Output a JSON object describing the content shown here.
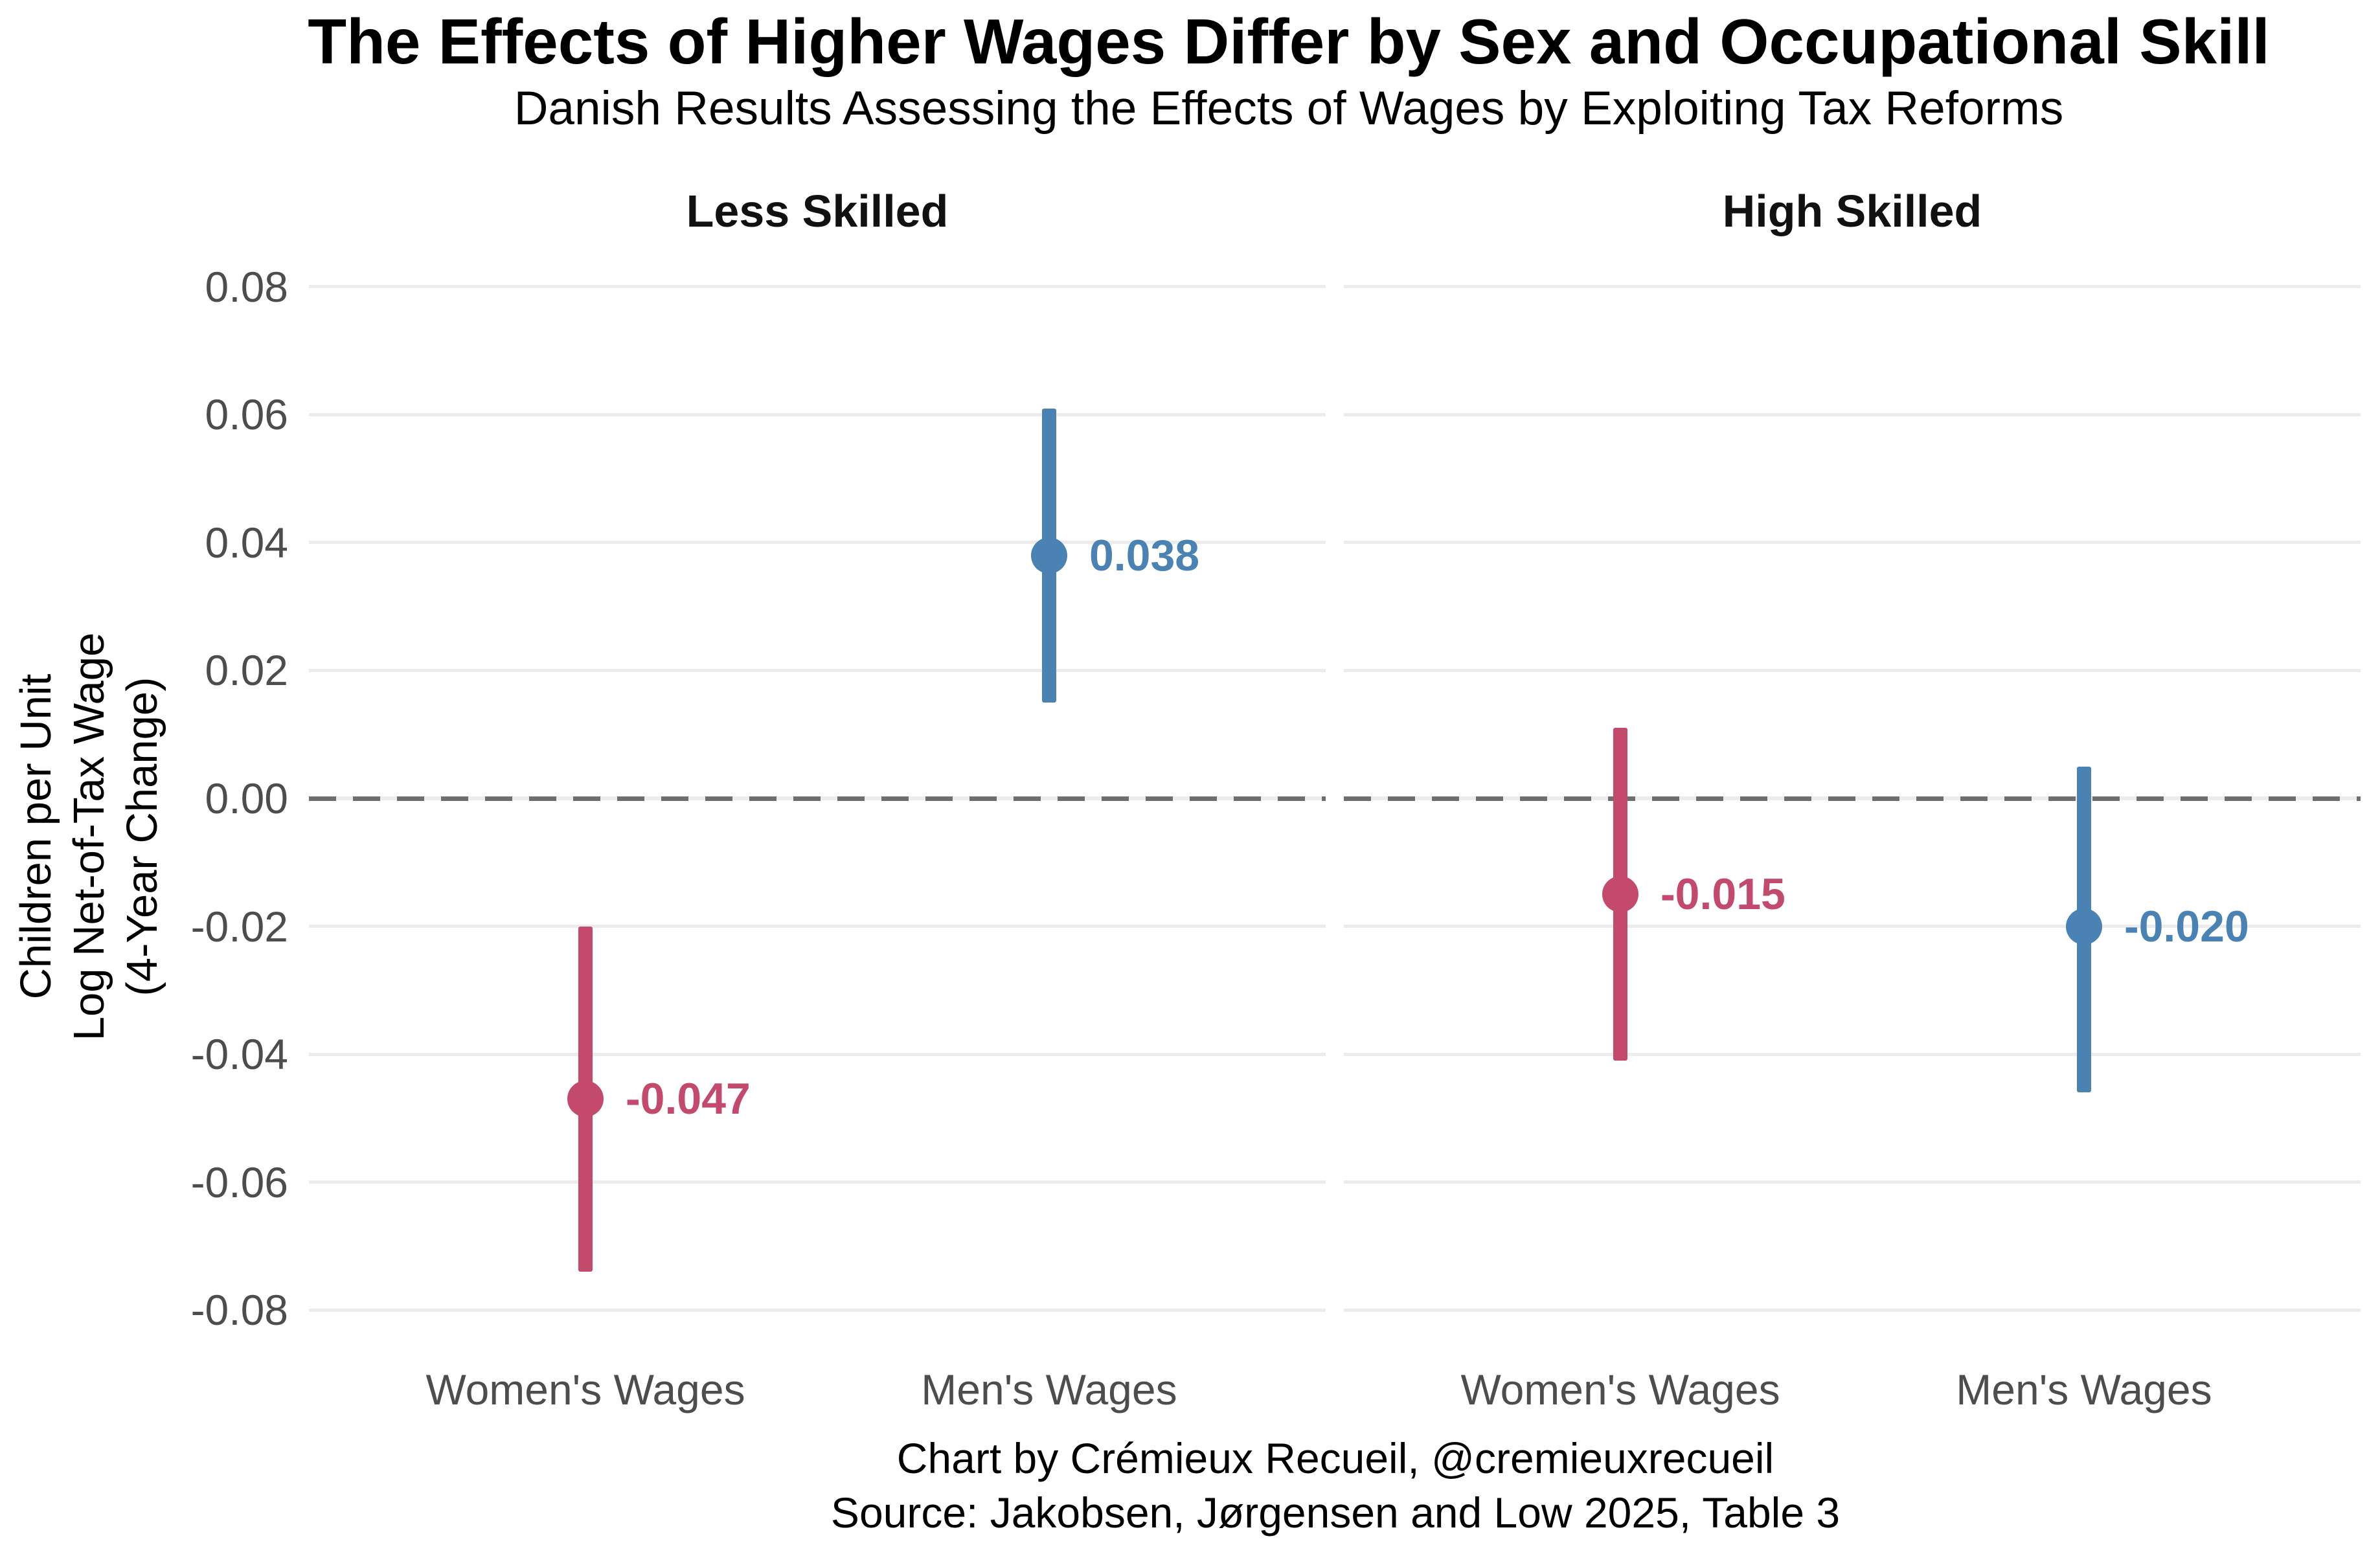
{
  "title": "The Effects of Higher Wages Differ by Sex and Occupational Skill",
  "subtitle": "Danish Results Assessing the Effects of Wages by Exploiting Tax Reforms",
  "caption": {
    "line1": "Chart by Crémieux Recueil, @cremieuxrecueil",
    "line2": "Source: Jakobsen, Jørgensen and Low 2025, Table 3"
  },
  "y_axis": {
    "label_lines": [
      "Children per Unit",
      "Log Net-of-Tax Wage",
      "(4-Year Change)"
    ]
  },
  "colors": {
    "women": "#C34A6D",
    "men": "#4A82B4",
    "grid": "#ECECEC",
    "zero_dash": "#6E6E6E",
    "axis_text": "#4D4D4D",
    "text": "#000000",
    "background": "#FFFFFF"
  },
  "chart_data": {
    "type": "scatter",
    "subtype": "pointrange-errorbar",
    "title": "The Effects of Higher Wages Differ by Sex and Occupational Skill",
    "subtitle": "Danish Results Assessing the Effects of Wages by Exploiting Tax Reforms",
    "xlabel": "",
    "ylabel": "Children per Unit Log Net-of-Tax Wage (4-Year Change)",
    "ylim": [
      -0.0817,
      0.0813
    ],
    "yticks": [
      0.08,
      0.06,
      0.04,
      0.02,
      0,
      -0.02,
      -0.04,
      -0.06,
      -0.08
    ],
    "zero_reference_line": 0,
    "grid": true,
    "legend_position": "none",
    "facets": [
      {
        "label": "Less Skilled",
        "points": [
          {
            "category": "Women's Wages",
            "series": "women",
            "estimate": -0.047,
            "ci_low": -0.074,
            "ci_high": -0.02,
            "label": "-0.047"
          },
          {
            "category": "Men's Wages",
            "series": "men",
            "estimate": 0.038,
            "ci_low": 0.015,
            "ci_high": 0.061,
            "label": "0.038"
          }
        ]
      },
      {
        "label": "High Skilled",
        "points": [
          {
            "category": "Women's Wages",
            "series": "women",
            "estimate": -0.015,
            "ci_low": -0.041,
            "ci_high": 0.011,
            "label": "-0.015"
          },
          {
            "category": "Men's Wages",
            "series": "men",
            "estimate": -0.02,
            "ci_low": -0.046,
            "ci_high": 0.005,
            "label": "-0.020"
          }
        ]
      }
    ]
  }
}
